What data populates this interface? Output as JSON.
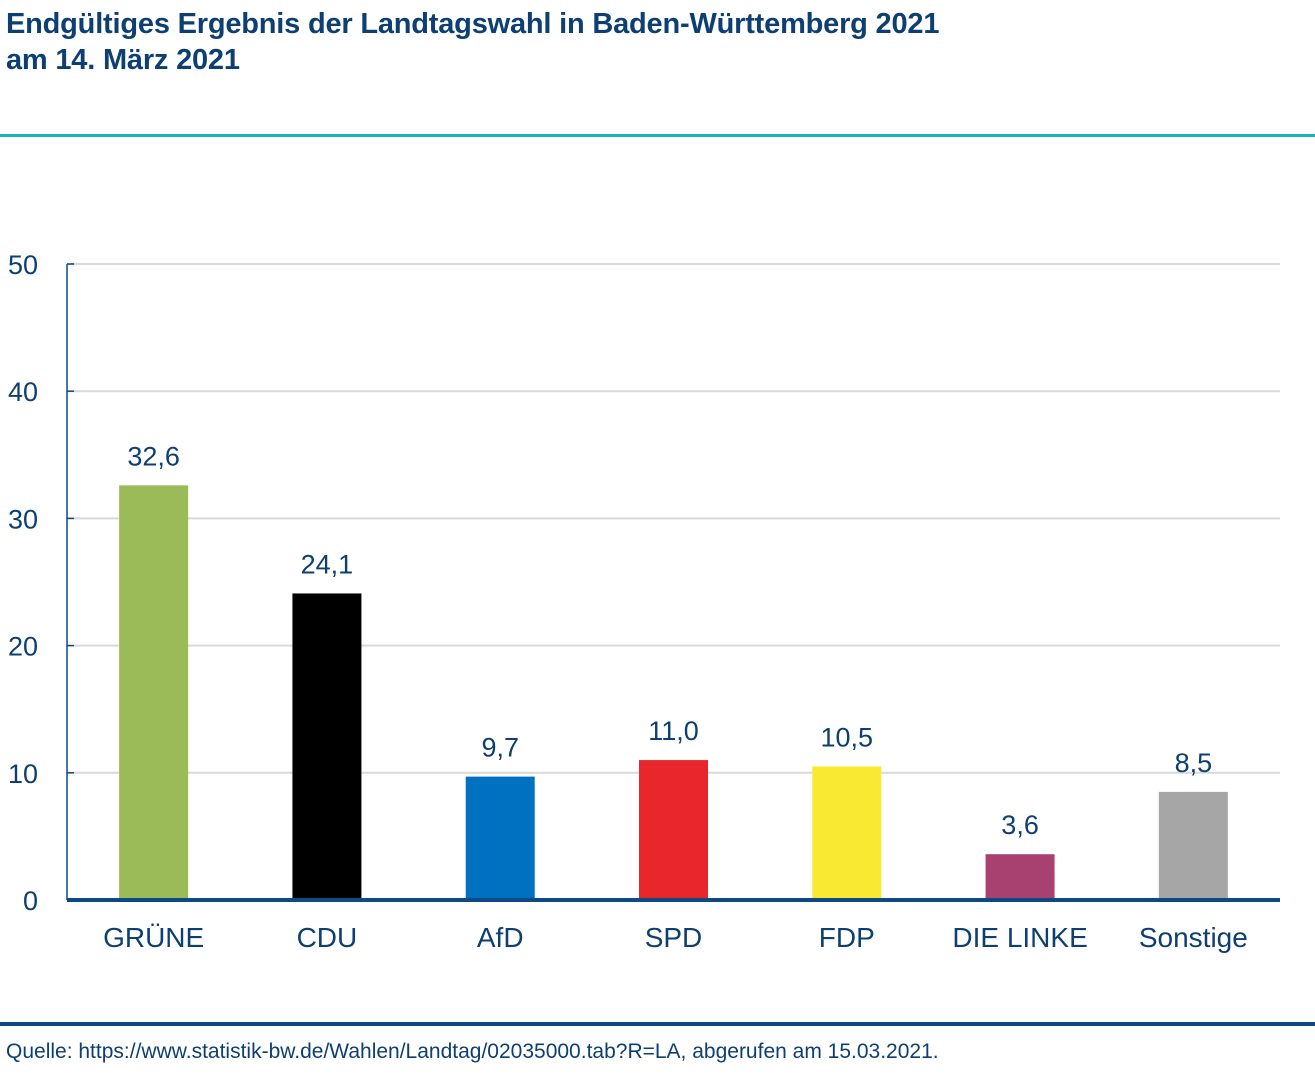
{
  "header": {
    "title_line1": "Endgültiges Ergebnis der Landtagswahl in Baden-Württemberg 2021",
    "title_line2": "am 14. März 2021"
  },
  "footer": {
    "source": "Quelle: https://www.statistik-bw.de/Wahlen/Landtag/02035000.tab?R=LA, abgerufen am 15.03.2021."
  },
  "colors": {
    "text": "#0d3f73",
    "accent_rule": "#17b6be",
    "axis": "#0d4a85",
    "grid": "#d9d9d9"
  },
  "chart_data": {
    "type": "bar",
    "title": "Endgültiges Ergebnis der Landtagswahl in Baden-Württemberg 2021 am 14. März 2021",
    "xlabel": "",
    "ylabel": "",
    "ylim": [
      0,
      50
    ],
    "yticks": [
      0,
      10,
      20,
      30,
      40,
      50
    ],
    "ytick_labels": [
      "0",
      "10",
      "20",
      "30",
      "40",
      "50"
    ],
    "grid": true,
    "legend": "none",
    "categories": [
      "GRÜNE",
      "CDU",
      "AfD",
      "SPD",
      "FDP",
      "DIE LINKE",
      "Sonstige"
    ],
    "values": [
      32.6,
      24.1,
      9.7,
      11.0,
      10.5,
      3.6,
      8.5
    ],
    "value_labels": [
      "32,6",
      "24,1",
      "9,7",
      "11,0",
      "10,5",
      "3,6",
      "8,5"
    ],
    "bar_colors": [
      "#9bbb59",
      "#000000",
      "#0070c0",
      "#e8262c",
      "#f9e933",
      "#a84070",
      "#a6a6a6"
    ]
  }
}
